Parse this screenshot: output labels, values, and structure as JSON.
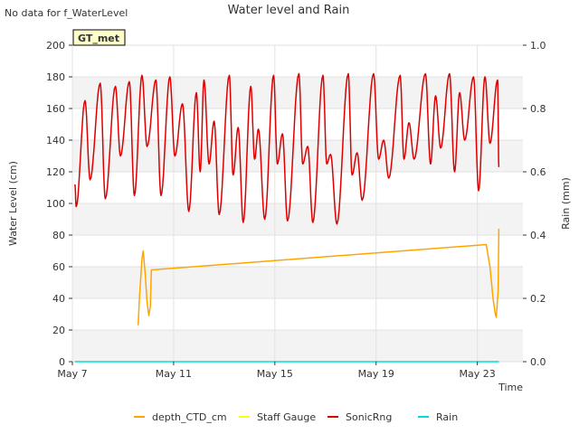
{
  "chart_data": {
    "type": "line",
    "title": "Water level and Rain",
    "note": "No data for f_WaterLevel",
    "station_badge": "GT_met",
    "xlabel": "Time",
    "ylabel_left": "Water Level (cm)",
    "ylabel_right": "Rain (mm)",
    "x_ticks": [
      "May 7",
      "May 11",
      "May 15",
      "May 19",
      "May 23"
    ],
    "x_range_days": [
      0,
      17.8
    ],
    "x_tick_days": [
      0,
      4,
      8,
      12,
      16
    ],
    "ylim_left": [
      0,
      200
    ],
    "ylim_right": [
      0,
      1.0
    ],
    "yticks_left": [
      0,
      20,
      40,
      60,
      80,
      100,
      120,
      140,
      160,
      180,
      200
    ],
    "yticks_right": [
      "0.0",
      "0.2",
      "0.4",
      "0.6",
      "0.8",
      "1.0"
    ],
    "grid": true,
    "legend_position": "bottom",
    "series": [
      {
        "name": "depth_CTD_cm",
        "color": "#FFA500",
        "axis": "left",
        "points": [
          [
            2.6,
            23
          ],
          [
            2.65,
            40
          ],
          [
            2.75,
            65
          ],
          [
            2.8,
            70
          ],
          [
            2.88,
            55
          ],
          [
            2.95,
            38
          ],
          [
            3.02,
            29
          ],
          [
            3.08,
            35
          ],
          [
            3.12,
            58
          ],
          [
            16.35,
            74
          ],
          [
            16.5,
            60
          ],
          [
            16.62,
            40
          ],
          [
            16.7,
            31
          ],
          [
            16.75,
            28
          ],
          [
            16.82,
            45
          ],
          [
            16.85,
            84
          ]
        ]
      },
      {
        "name": "Staff Gauge",
        "color": "#FFFF00",
        "axis": "left",
        "points": []
      },
      {
        "name": "SonicRng",
        "color": "#DD0000",
        "axis": "left",
        "extrema": [
          [
            0.1,
            112
          ],
          [
            0.15,
            98
          ],
          [
            0.5,
            165
          ],
          [
            0.7,
            115
          ],
          [
            1.1,
            176
          ],
          [
            1.3,
            103
          ],
          [
            1.7,
            174
          ],
          [
            1.9,
            130
          ],
          [
            2.25,
            177
          ],
          [
            2.45,
            105
          ],
          [
            2.75,
            181
          ],
          [
            2.95,
            136
          ],
          [
            3.3,
            178
          ],
          [
            3.5,
            105
          ],
          [
            3.85,
            180
          ],
          [
            4.05,
            130
          ],
          [
            4.35,
            163
          ],
          [
            4.6,
            95
          ],
          [
            4.9,
            170
          ],
          [
            5.05,
            120
          ],
          [
            5.2,
            178
          ],
          [
            5.4,
            125
          ],
          [
            5.6,
            152
          ],
          [
            5.8,
            93
          ],
          [
            6.2,
            181
          ],
          [
            6.35,
            118
          ],
          [
            6.55,
            148
          ],
          [
            6.75,
            88
          ],
          [
            7.05,
            174
          ],
          [
            7.2,
            128
          ],
          [
            7.35,
            147
          ],
          [
            7.6,
            90
          ],
          [
            7.95,
            181
          ],
          [
            8.1,
            125
          ],
          [
            8.3,
            144
          ],
          [
            8.5,
            89
          ],
          [
            8.95,
            182
          ],
          [
            9.1,
            125
          ],
          [
            9.3,
            136
          ],
          [
            9.5,
            88
          ],
          [
            9.9,
            181
          ],
          [
            10.05,
            125
          ],
          [
            10.2,
            131
          ],
          [
            10.45,
            87
          ],
          [
            10.9,
            182
          ],
          [
            11.05,
            118
          ],
          [
            11.25,
            132
          ],
          [
            11.45,
            102
          ],
          [
            11.9,
            182
          ],
          [
            12.1,
            128
          ],
          [
            12.3,
            140
          ],
          [
            12.5,
            116
          ],
          [
            12.95,
            181
          ],
          [
            13.1,
            128
          ],
          [
            13.3,
            151
          ],
          [
            13.5,
            128
          ],
          [
            13.95,
            182
          ],
          [
            14.15,
            125
          ],
          [
            14.35,
            168
          ],
          [
            14.55,
            135
          ],
          [
            14.9,
            182
          ],
          [
            15.1,
            120
          ],
          [
            15.3,
            170
          ],
          [
            15.5,
            140
          ],
          [
            15.85,
            180
          ],
          [
            16.05,
            108
          ],
          [
            16.3,
            180
          ],
          [
            16.5,
            138
          ],
          [
            16.8,
            178
          ],
          [
            16.85,
            123
          ]
        ]
      },
      {
        "name": "Rain",
        "color": "#00DDDD",
        "axis": "right",
        "points": [
          [
            0.1,
            0
          ],
          [
            16.85,
            0
          ]
        ]
      }
    ]
  }
}
